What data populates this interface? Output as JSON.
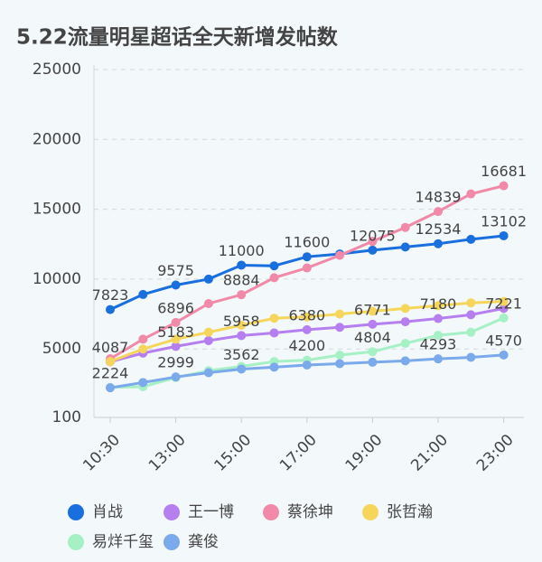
{
  "chart_data": {
    "type": "line",
    "title": "5.22流量明星超话全天新增发帖数",
    "categories": [
      "10:30",
      null,
      "13:00",
      null,
      "15:00",
      null,
      "17:00",
      null,
      "19:00",
      null,
      "21:00",
      null,
      "23:00"
    ],
    "ylim": [
      100,
      25000
    ],
    "yticks": [
      100,
      5000,
      10000,
      15000,
      20000,
      25000
    ],
    "grid": true,
    "series": [
      {
        "name": "肖战",
        "color": "#1a6fdf",
        "values": [
          7823,
          8900,
          9575,
          10000,
          11000,
          10950,
          11600,
          11800,
          12075,
          12300,
          12534,
          12850,
          13102
        ],
        "value_labels": [
          "7823",
          null,
          "9575",
          null,
          "11000",
          null,
          "11600",
          null,
          "12075",
          null,
          "12534",
          null,
          "13102"
        ]
      },
      {
        "name": "王一博",
        "color": "#b67ff0",
        "values": [
          4087,
          4700,
          5183,
          5600,
          5958,
          6150,
          6380,
          6550,
          6771,
          6950,
          7180,
          7450,
          7900
        ],
        "value_labels": [
          "4087",
          null,
          "5183",
          null,
          "5958",
          null,
          "6380",
          null,
          "6771",
          null,
          "7180",
          null,
          null
        ]
      },
      {
        "name": "蔡徐坤",
        "color": "#f08aa8",
        "values": [
          4300,
          5700,
          6896,
          8250,
          8884,
          10100,
          10800,
          11700,
          12700,
          13700,
          14839,
          16100,
          16681
        ],
        "value_labels": [
          null,
          null,
          "6896",
          null,
          "8884",
          null,
          null,
          null,
          null,
          null,
          "14839",
          null,
          "16681"
        ]
      },
      {
        "name": "张哲瀚",
        "color": "#f5d65a",
        "values": [
          4100,
          5000,
          5700,
          6200,
          6700,
          7200,
          7300,
          7500,
          7700,
          7900,
          8100,
          8300,
          8400
        ],
        "value_labels": [
          null,
          null,
          null,
          null,
          null,
          null,
          null,
          null,
          null,
          null,
          null,
          null,
          null
        ]
      },
      {
        "name": "易烊千玺",
        "color": "#a5f0c5",
        "values": [
          2250,
          2300,
          2950,
          3450,
          3750,
          4100,
          4200,
          4560,
          4804,
          5400,
          5980,
          6200,
          7221
        ],
        "value_labels": [
          null,
          null,
          null,
          null,
          null,
          null,
          "4200",
          null,
          "4804",
          null,
          null,
          null,
          "7221"
        ]
      },
      {
        "name": "龚俊",
        "color": "#7aa9ec",
        "values": [
          2224,
          2600,
          2999,
          3300,
          3562,
          3700,
          3850,
          3950,
          4050,
          4150,
          4293,
          4400,
          4570
        ],
        "value_labels": [
          "2224",
          null,
          "2999",
          null,
          "3562",
          null,
          null,
          null,
          null,
          null,
          "4293",
          null,
          "4570"
        ]
      }
    ]
  }
}
